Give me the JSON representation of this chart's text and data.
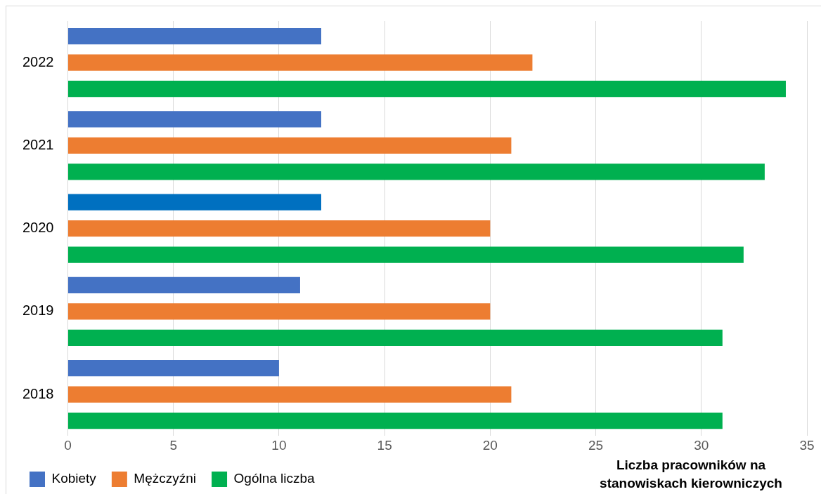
{
  "chart_data": {
    "type": "bar",
    "orientation": "horizontal",
    "xlabel": "Liczba pracowników na stanowiskach kierowniczych",
    "categories": [
      "2022",
      "2021",
      "2020",
      "2019",
      "2018"
    ],
    "series": [
      {
        "name": "Kobiety",
        "color": "#4472c4",
        "colors": [
          "#4472c4",
          "#4472c4",
          "#0070c0",
          "#4472c4",
          "#4472c4"
        ],
        "values": [
          12,
          12,
          12,
          11,
          10
        ]
      },
      {
        "name": "Mężczyźni",
        "color": "#ed7d31",
        "values": [
          22,
          21,
          20,
          20,
          21
        ]
      },
      {
        "name": "Ogólna liczba",
        "color": "#00b050",
        "values": [
          34,
          33,
          32,
          31,
          31
        ]
      }
    ],
    "xlim": [
      0,
      35
    ],
    "xticks": [
      0,
      5,
      10,
      15,
      20,
      25,
      30,
      35
    ],
    "grid": "x",
    "legend": "bottom left"
  }
}
